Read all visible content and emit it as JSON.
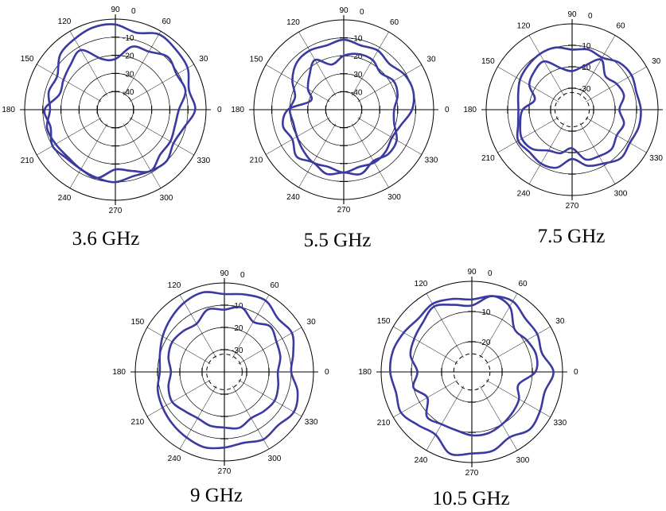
{
  "chart_data": [
    {
      "type": "polar",
      "title": "3.6 GHz",
      "angle_ticks": [
        "0",
        "30",
        "60",
        "90",
        "120",
        "150",
        "180",
        "210",
        "240",
        "270",
        "300",
        "330"
      ],
      "radial_ticks": [
        "0",
        "-10",
        "-20",
        "-30",
        "-40"
      ],
      "rlim": [
        -50,
        0
      ],
      "series": [
        {
          "angle_deg": [
            0,
            15,
            30,
            45,
            60,
            75,
            90,
            105,
            120,
            135,
            150,
            165,
            180,
            195,
            210,
            225,
            240,
            255,
            270,
            285,
            300,
            315,
            330,
            345
          ],
          "values": [
            -6,
            -8,
            -4,
            -3,
            -2,
            -6,
            -3,
            -3,
            -5,
            -7,
            -13,
            -12,
            -14,
            -11,
            -12,
            -13,
            -12,
            -11,
            -10,
            -12,
            -11,
            -10,
            -13,
            -11
          ]
        },
        {
          "angle_deg": [
            0,
            15,
            30,
            45,
            60,
            75,
            90,
            105,
            120,
            135,
            150,
            165,
            180,
            195,
            210,
            225,
            240,
            255,
            270,
            285,
            300,
            315,
            330,
            345
          ],
          "values": [
            -15,
            -10,
            -11,
            -9,
            -13,
            -14,
            -22,
            -21,
            -12,
            -15,
            -17,
            -18,
            -11,
            -13,
            -10,
            -12,
            -12,
            -11,
            -17,
            -15,
            -11,
            -15,
            -15,
            -16
          ]
        }
      ]
    },
    {
      "type": "polar",
      "title": "5.5 GHz",
      "angle_ticks": [
        "0",
        "30",
        "60",
        "90",
        "120",
        "150",
        "180",
        "210",
        "240",
        "270",
        "300",
        "330"
      ],
      "radial_ticks": [
        "0",
        "-10",
        "-20",
        "-30",
        "-40"
      ],
      "rlim": [
        -50,
        0
      ],
      "series": [
        {
          "angle_deg": [
            0,
            15,
            30,
            45,
            60,
            75,
            90,
            105,
            120,
            135,
            150,
            165,
            180,
            195,
            210,
            225,
            240,
            255,
            270,
            285,
            300,
            315,
            330,
            345
          ],
          "values": [
            -12,
            -10,
            -11,
            -14,
            -12,
            -13,
            -11,
            -13,
            -12,
            -13,
            -17,
            -22,
            -20,
            -21,
            -20,
            -18,
            -16,
            -17,
            -15,
            -17,
            -16,
            -17,
            -19,
            -17
          ]
        },
        {
          "angle_deg": [
            0,
            15,
            30,
            45,
            60,
            75,
            90,
            105,
            120,
            135,
            150,
            165,
            180,
            195,
            210,
            225,
            240,
            255,
            270,
            285,
            300,
            315,
            330,
            345
          ],
          "values": [
            -22,
            -19,
            -18,
            -21,
            -18,
            -18,
            -20,
            -24,
            -18,
            -23,
            -27,
            -31,
            -19,
            -15,
            -17,
            -13,
            -16,
            -13,
            -15,
            -13,
            -17,
            -15,
            -16,
            -21
          ]
        }
      ]
    },
    {
      "type": "polar",
      "title": "7.5 GHz",
      "angle_ticks": [
        "0",
        "30",
        "60",
        "90",
        "120",
        "150",
        "180",
        "210",
        "240",
        "270",
        "300",
        "330"
      ],
      "radial_ticks": [
        "0",
        "-10",
        "-20",
        "-30"
      ],
      "rlim": [
        -40,
        0
      ],
      "series": [
        {
          "angle_deg": [
            0,
            15,
            30,
            45,
            60,
            75,
            90,
            105,
            120,
            135,
            150,
            165,
            180,
            195,
            210,
            225,
            240,
            255,
            270,
            285,
            300,
            315,
            330,
            345
          ],
          "values": [
            -8,
            -9,
            -8,
            -9,
            -12,
            -11,
            -12,
            -10,
            -10,
            -11,
            -12,
            -14,
            -15,
            -14,
            -11,
            -12,
            -11,
            -12,
            -17,
            -13,
            -11,
            -8,
            -9,
            -8
          ]
        },
        {
          "angle_deg": [
            0,
            15,
            30,
            45,
            60,
            75,
            90,
            105,
            120,
            135,
            150,
            165,
            180,
            195,
            210,
            225,
            240,
            255,
            270,
            285,
            300,
            315,
            330,
            345
          ],
          "values": [
            -18,
            -15,
            -16,
            -18,
            -13,
            -19,
            -22,
            -20,
            -14,
            -15,
            -17,
            -22,
            -17,
            -15,
            -13,
            -14,
            -18,
            -19,
            -22,
            -16,
            -15,
            -14,
            -16,
            -15
          ]
        }
      ]
    },
    {
      "type": "polar",
      "title": "9 GHz",
      "angle_ticks": [
        "0",
        "30",
        "60",
        "90",
        "120",
        "150",
        "180",
        "210",
        "240",
        "270",
        "300",
        "330"
      ],
      "radial_ticks": [
        "0",
        "-10",
        "-20",
        "-30"
      ],
      "rlim": [
        -40,
        0
      ],
      "series": [
        {
          "angle_deg": [
            0,
            15,
            30,
            45,
            60,
            75,
            90,
            105,
            120,
            135,
            150,
            165,
            180,
            195,
            210,
            225,
            240,
            255,
            270,
            285,
            300,
            315,
            330,
            345
          ],
          "values": [
            -10,
            -8,
            -5,
            -6,
            -3,
            -4,
            -5,
            -3,
            -4,
            -6,
            -8,
            -10,
            -11,
            -9,
            -8,
            -7,
            -6,
            -5,
            -6,
            -7,
            -5,
            -6,
            -4,
            -6
          ]
        },
        {
          "angle_deg": [
            0,
            15,
            30,
            45,
            60,
            75,
            90,
            105,
            120,
            135,
            150,
            165,
            180,
            195,
            210,
            225,
            240,
            255,
            270,
            285,
            300,
            315,
            330,
            345
          ],
          "values": [
            -16,
            -14,
            -13,
            -11,
            -14,
            -10,
            -12,
            -11,
            -15,
            -14,
            -13,
            -14,
            -16,
            -14,
            -13,
            -15,
            -16,
            -15,
            -15,
            -14,
            -16,
            -15,
            -14,
            -15
          ]
        }
      ]
    },
    {
      "type": "polar",
      "title": "10.5 GHz",
      "angle_ticks": [
        "0",
        "30",
        "60",
        "90",
        "120",
        "150",
        "180",
        "210",
        "240",
        "270",
        "300",
        "330"
      ],
      "radial_ticks": [
        "0",
        "-10",
        "-20"
      ],
      "rlim": [
        -30,
        0
      ],
      "series": [
        {
          "angle_deg": [
            0,
            15,
            30,
            45,
            60,
            75,
            90,
            105,
            120,
            135,
            150,
            165,
            180,
            195,
            210,
            225,
            240,
            255,
            270,
            285,
            300,
            315,
            330,
            345
          ],
          "values": [
            -3,
            -6,
            -5,
            -5,
            -3,
            -4,
            -6,
            -5,
            -4,
            -5,
            -4,
            -3,
            -3,
            -4,
            -3,
            -5,
            -6,
            -2,
            -3,
            -3,
            -5,
            -3,
            -4,
            -5
          ]
        },
        {
          "angle_deg": [
            0,
            15,
            30,
            45,
            60,
            75,
            90,
            105,
            120,
            135,
            150,
            165,
            180,
            195,
            210,
            225,
            240,
            255,
            270,
            285,
            300,
            315,
            330,
            345
          ],
          "values": [
            -9,
            -8,
            -9,
            -10,
            -5,
            -4,
            -8,
            -7,
            -5,
            -7,
            -8,
            -9,
            -12,
            -10,
            -13,
            -9,
            -10,
            -10,
            -9,
            -9,
            -10,
            -11,
            -12,
            -14
          ]
        }
      ]
    }
  ]
}
